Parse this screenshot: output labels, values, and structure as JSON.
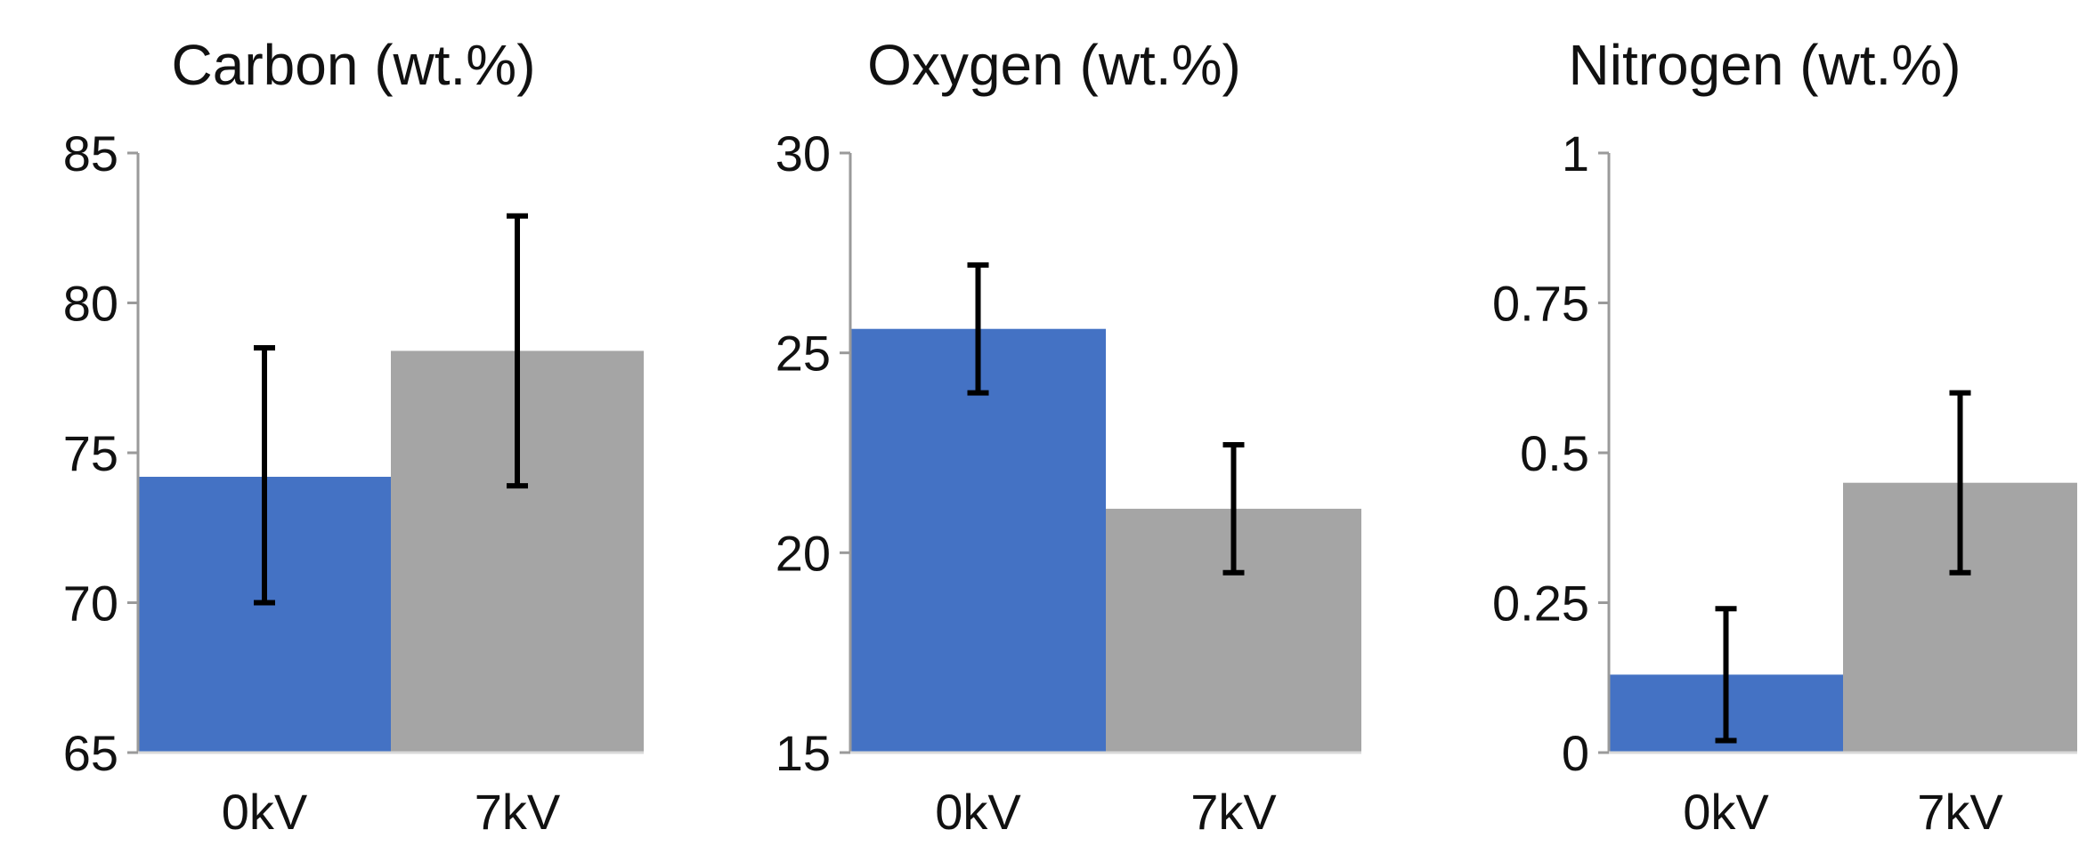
{
  "chart_data": [
    {
      "type": "bar",
      "title": "Carbon (wt.%)",
      "categories": [
        "0kV",
        "7kV"
      ],
      "values": [
        74.2,
        78.4
      ],
      "error": [
        {
          "low": 70.0,
          "high": 78.5
        },
        {
          "low": 73.9,
          "high": 82.9
        }
      ],
      "colors": [
        "#4472C4",
        "#A5A5A5"
      ],
      "ylim": [
        65,
        85
      ],
      "yticks": [
        "65",
        "70",
        "75",
        "80",
        "85"
      ],
      "ytick_values": [
        65,
        70,
        75,
        80,
        85
      ],
      "xlabel": "",
      "ylabel": "",
      "grid": false
    },
    {
      "type": "bar",
      "title": "Oxygen (wt.%)",
      "categories": [
        "0kV",
        "7kV"
      ],
      "values": [
        25.6,
        21.1
      ],
      "error": [
        {
          "low": 24.0,
          "high": 27.2
        },
        {
          "low": 19.5,
          "high": 22.7
        }
      ],
      "colors": [
        "#4472C4",
        "#A5A5A5"
      ],
      "ylim": [
        15,
        30
      ],
      "yticks": [
        "15",
        "20",
        "25",
        "30"
      ],
      "ytick_values": [
        15,
        20,
        25,
        30
      ],
      "xlabel": "",
      "ylabel": "",
      "grid": false
    },
    {
      "type": "bar",
      "title": "Nitrogen (wt.%)",
      "categories": [
        "0kV",
        "7kV"
      ],
      "values": [
        0.13,
        0.45
      ],
      "error": [
        {
          "low": 0.02,
          "high": 0.24
        },
        {
          "low": 0.3,
          "high": 0.6
        }
      ],
      "colors": [
        "#4472C4",
        "#A5A5A5"
      ],
      "ylim": [
        0,
        1
      ],
      "yticks": [
        "0",
        "0.25",
        "0.5",
        "0.75",
        "1"
      ],
      "ytick_values": [
        0,
        0.25,
        0.5,
        0.75,
        1
      ],
      "xlabel": "",
      "ylabel": "",
      "grid": false
    }
  ]
}
